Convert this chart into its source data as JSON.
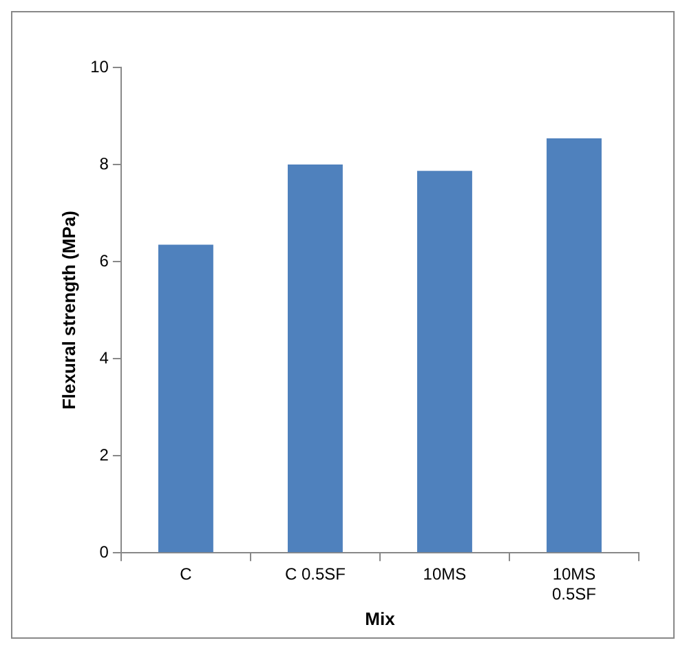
{
  "chart_data": {
    "type": "bar",
    "xlabel": "Mix",
    "ylabel": "Flexural strength (MPa)",
    "categories": [
      "C",
      "C 0.5SF",
      "10MS",
      "10MS 0.5SF"
    ],
    "values": [
      6.35,
      8.0,
      7.87,
      8.54
    ],
    "color": "#4f81bd",
    "ylim": [
      0,
      10
    ],
    "yticks": [
      0,
      2,
      4,
      6,
      8,
      10
    ],
    "grid": false
  }
}
